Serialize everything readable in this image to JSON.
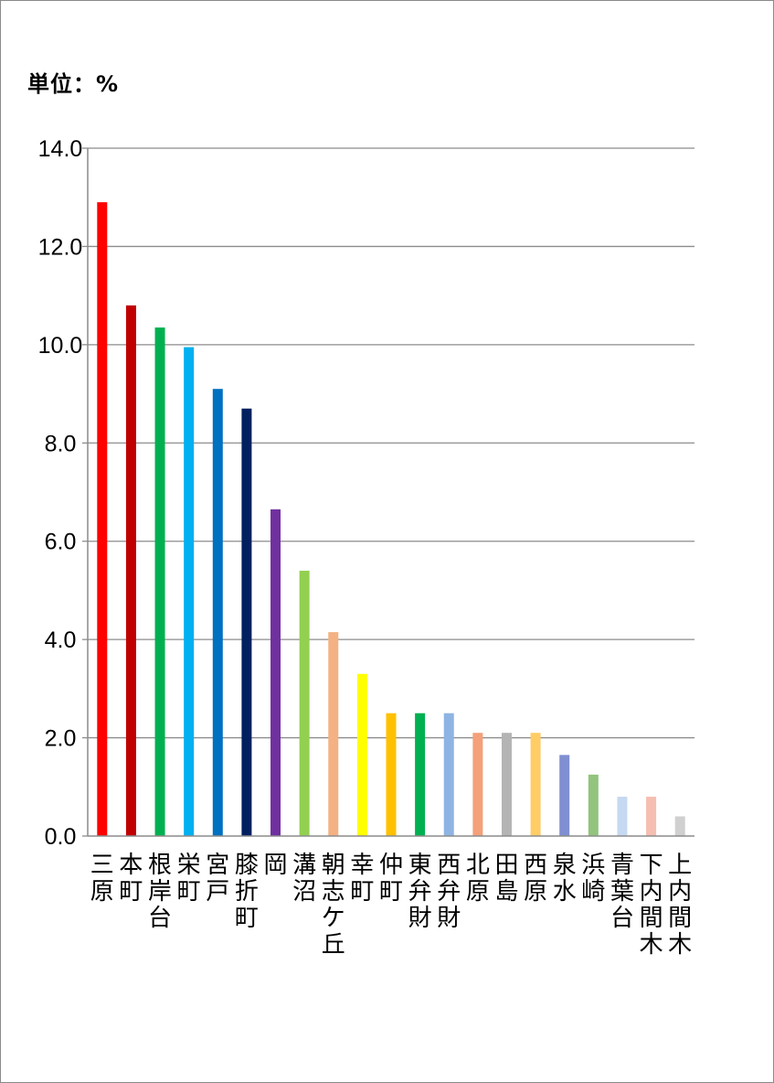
{
  "unit_label": "単位：%",
  "chart_data": {
    "type": "bar",
    "title": "",
    "xlabel": "",
    "ylabel": "",
    "ylim": [
      0,
      14
    ],
    "grid": true,
    "yticks": [
      0,
      2,
      4,
      6,
      8,
      10,
      12,
      14
    ],
    "ytick_labels": [
      "0.0",
      "2.0",
      "4.0",
      "6.0",
      "8.0",
      "10.0",
      "12.0",
      "14.0"
    ],
    "categories": [
      "三原",
      "本町",
      "根岸台",
      "栄町",
      "宮戸",
      "膝折町",
      "岡",
      "溝沼",
      "朝志ケ丘",
      "幸町",
      "仲町",
      "東弁財",
      "西弁財",
      "北原",
      "田島",
      "西原",
      "泉水",
      "浜崎",
      "青葉台",
      "下内間木",
      "上内間木"
    ],
    "values": [
      12.9,
      10.8,
      10.35,
      9.95,
      9.1,
      8.7,
      6.65,
      5.4,
      4.15,
      3.3,
      2.5,
      2.5,
      2.5,
      2.1,
      2.1,
      2.1,
      1.65,
      1.25,
      0.8,
      0.8,
      0.4
    ],
    "colors": [
      "#ff0000",
      "#c00000",
      "#00b050",
      "#00b0f0",
      "#0070c0",
      "#002060",
      "#7030a0",
      "#92d050",
      "#f4b183",
      "#ffff00",
      "#ffc000",
      "#00b050",
      "#8eb4e3",
      "#f4a07a",
      "#b4b4b4",
      "#ffcc66",
      "#7f8fd1",
      "#93c47d",
      "#c5d9f1",
      "#f5beb0",
      "#d0d0d0"
    ]
  }
}
